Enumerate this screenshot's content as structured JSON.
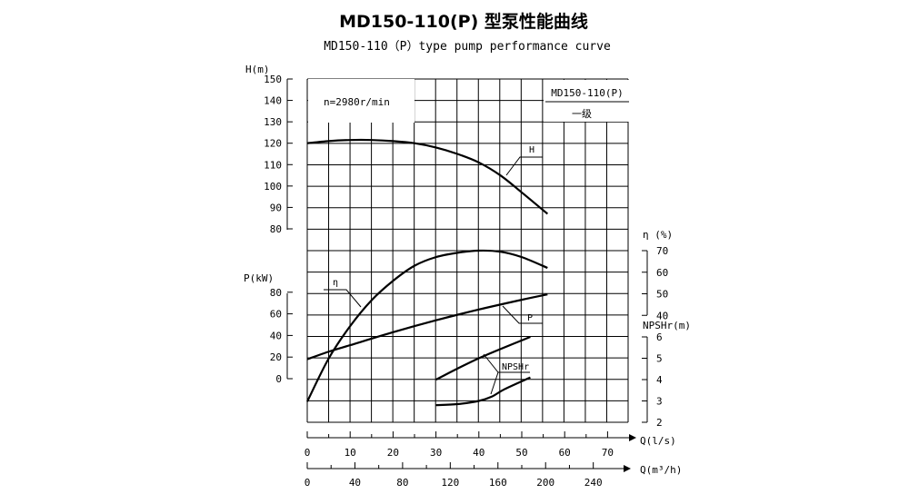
{
  "chart_data": {
    "type": "line",
    "title": "MD150-110(P) 型泵性能曲线",
    "subtitle": "MD150-110（P）type pump performance curve",
    "info": "n=2980r/min",
    "box_model": "MD150-110(P)",
    "box_stage": "一级",
    "x_axis": {
      "label": "Q(l/s)",
      "range": [
        0,
        70
      ],
      "ticks": [
        0,
        10,
        20,
        30,
        40,
        50,
        60,
        70
      ]
    },
    "x2_axis": {
      "label": "Q(m³/h)",
      "ticks": [
        0,
        40,
        80,
        120,
        160,
        200,
        240
      ]
    },
    "y_axes": {
      "H": {
        "label": "H(m)",
        "range": [
          80,
          150
        ],
        "ticks": [
          80,
          90,
          100,
          110,
          120,
          130,
          140,
          150
        ]
      },
      "P": {
        "label": "P(kW)",
        "range": [
          0,
          80
        ],
        "ticks": [
          0,
          20,
          40,
          60,
          80
        ]
      },
      "eta": {
        "label": "η (%)",
        "range": [
          40,
          70
        ],
        "ticks": [
          40,
          50,
          60,
          70
        ]
      },
      "NPSHr": {
        "label": "NPSHr(m)",
        "range": [
          2,
          6
        ],
        "ticks": [
          2,
          3,
          4,
          5,
          6
        ]
      }
    },
    "grid": true,
    "series": [
      {
        "name": "H",
        "axis": "H",
        "x": [
          0,
          5,
          10,
          15,
          20,
          25,
          30,
          35,
          40,
          45,
          50,
          56
        ],
        "y": [
          120,
          121,
          121.5,
          121.5,
          121,
          120,
          118,
          115,
          111,
          105,
          97,
          87
        ]
      },
      {
        "name": "η",
        "axis": "eta",
        "x": [
          0,
          5,
          10,
          15,
          20,
          25,
          30,
          35,
          40,
          45,
          50,
          56
        ],
        "y": [
          0,
          20,
          35,
          47,
          56,
          63,
          67,
          69,
          70,
          69.5,
          67,
          62
        ]
      },
      {
        "name": "P",
        "axis": "P",
        "x": [
          0,
          5,
          10,
          20,
          30,
          40,
          50,
          56
        ],
        "y": [
          18,
          25,
          31,
          43,
          54,
          64,
          73,
          78
        ]
      },
      {
        "name": "NPSHr",
        "axis": "NPSHr",
        "x": [
          30,
          40,
          52
        ],
        "y": [
          4,
          5,
          6
        ]
      },
      {
        "name": "NPSHr",
        "axis": "NPSHr",
        "x": [
          30,
          35,
          40,
          43,
          46,
          52
        ],
        "y": [
          2.8,
          2.85,
          3,
          3.2,
          3.55,
          4.1
        ]
      }
    ]
  }
}
